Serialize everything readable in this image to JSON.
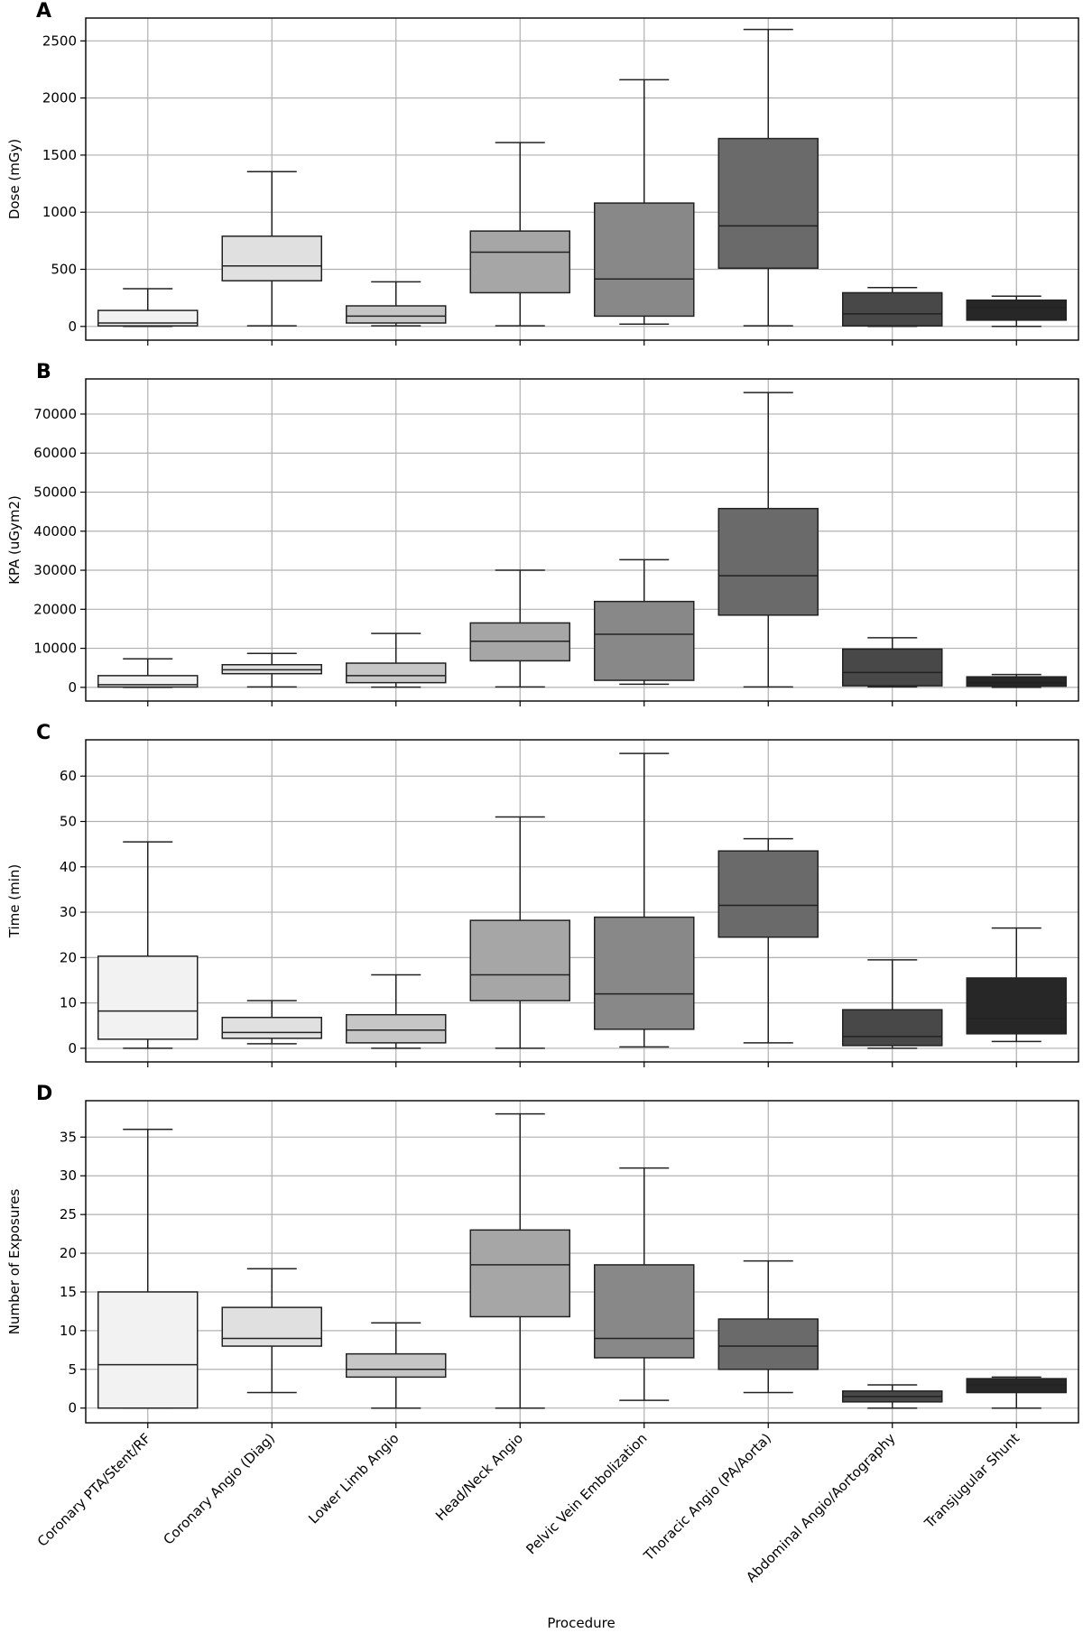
{
  "chart_data": {
    "type": "box",
    "categories": [
      "Coronary PTA/Stent/RF",
      "Coronary Angio (Diag)",
      "Lower Limb Angio",
      "Head/Neck Angio",
      "Pelvic Vein Embolization",
      "Thoracic Angio (PA/Aorta)",
      "Abdominal Angio/Aortography",
      "Transjugular Shunt"
    ],
    "box_colors": [
      "#f2f2f2",
      "#e0e0e0",
      "#c6c6c6",
      "#a6a6a6",
      "#888888",
      "#6a6a6a",
      "#484848",
      "#272727"
    ],
    "xlabel": "Procedure",
    "grid": true,
    "panels": [
      {
        "label": "A",
        "ylabel": "Dose (mGy)",
        "ylim": [
          -120,
          2700
        ],
        "yticks": [
          0,
          500,
          1000,
          1500,
          2000,
          2500
        ],
        "boxes": [
          {
            "whislo": 0,
            "q1": 5,
            "med": 30,
            "q3": 140,
            "whishi": 330
          },
          {
            "whislo": 5,
            "q1": 400,
            "med": 530,
            "q3": 790,
            "whishi": 1355
          },
          {
            "whislo": 5,
            "q1": 30,
            "med": 90,
            "q3": 180,
            "whishi": 390
          },
          {
            "whislo": 5,
            "q1": 295,
            "med": 650,
            "q3": 835,
            "whishi": 1610
          },
          {
            "whislo": 20,
            "q1": 90,
            "med": 415,
            "q3": 1080,
            "whishi": 2160
          },
          {
            "whislo": 5,
            "q1": 510,
            "med": 880,
            "q3": 1645,
            "whishi": 2600
          },
          {
            "whislo": 0,
            "q1": 5,
            "med": 110,
            "q3": 295,
            "whishi": 340
          },
          {
            "whislo": 0,
            "q1": 55,
            "med": 165,
            "q3": 230,
            "whishi": 265
          }
        ]
      },
      {
        "label": "B",
        "ylabel": "KPA (uGym2)",
        "ylim": [
          -3500,
          79000
        ],
        "yticks": [
          0,
          10000,
          20000,
          30000,
          40000,
          50000,
          60000,
          70000
        ],
        "boxes": [
          {
            "whislo": 0,
            "q1": 100,
            "med": 700,
            "q3": 3000,
            "whishi": 7300
          },
          {
            "whislo": 100,
            "q1": 3500,
            "med": 4500,
            "q3": 5800,
            "whishi": 8700
          },
          {
            "whislo": 50,
            "q1": 1200,
            "med": 3000,
            "q3": 6200,
            "whishi": 13800
          },
          {
            "whislo": 100,
            "q1": 6800,
            "med": 11800,
            "q3": 16500,
            "whishi": 30000
          },
          {
            "whislo": 800,
            "q1": 1800,
            "med": 13600,
            "q3": 22000,
            "whishi": 32700
          },
          {
            "whislo": 100,
            "q1": 18500,
            "med": 28600,
            "q3": 45800,
            "whishi": 75500
          },
          {
            "whislo": 100,
            "q1": 400,
            "med": 3800,
            "q3": 9800,
            "whishi": 12700
          },
          {
            "whislo": 0,
            "q1": 300,
            "med": 1200,
            "q3": 2700,
            "whishi": 3300
          }
        ]
      },
      {
        "label": "C",
        "ylabel": "Time (min)",
        "ylim": [
          -3,
          68
        ],
        "yticks": [
          0,
          10,
          20,
          30,
          40,
          50,
          60
        ],
        "boxes": [
          {
            "whislo": 0,
            "q1": 2,
            "med": 8.2,
            "q3": 20.3,
            "whishi": 45.5
          },
          {
            "whislo": 1,
            "q1": 2.2,
            "med": 3.5,
            "q3": 6.8,
            "whishi": 10.5
          },
          {
            "whislo": 0,
            "q1": 1.2,
            "med": 4,
            "q3": 7.4,
            "whishi": 16.2
          },
          {
            "whislo": 0,
            "q1": 10.5,
            "med": 16.2,
            "q3": 28.2,
            "whishi": 51
          },
          {
            "whislo": 0.3,
            "q1": 4.2,
            "med": 12,
            "q3": 28.9,
            "whishi": 65
          },
          {
            "whislo": 1.2,
            "q1": 24.5,
            "med": 31.5,
            "q3": 43.5,
            "whishi": 46.2
          },
          {
            "whislo": 0,
            "q1": 0.6,
            "med": 2.6,
            "q3": 8.5,
            "whishi": 19.5
          },
          {
            "whislo": 1.5,
            "q1": 3.2,
            "med": 6.5,
            "q3": 15.5,
            "whishi": 26.5
          }
        ]
      },
      {
        "label": "D",
        "ylabel": "Number of Exposures",
        "ylim": [
          -1.9,
          39.7
        ],
        "yticks": [
          0,
          5,
          10,
          15,
          20,
          25,
          30,
          35
        ],
        "boxes": [
          {
            "whislo": 0,
            "q1": 0,
            "med": 5.6,
            "q3": 15,
            "whishi": 36
          },
          {
            "whislo": 2,
            "q1": 8,
            "med": 9,
            "q3": 13,
            "whishi": 18
          },
          {
            "whislo": 0,
            "q1": 4,
            "med": 5,
            "q3": 7,
            "whishi": 11
          },
          {
            "whislo": 0,
            "q1": 11.8,
            "med": 18.5,
            "q3": 23,
            "whishi": 38
          },
          {
            "whislo": 1,
            "q1": 6.5,
            "med": 9,
            "q3": 18.5,
            "whishi": 31
          },
          {
            "whislo": 2,
            "q1": 5,
            "med": 8,
            "q3": 11.5,
            "whishi": 19
          },
          {
            "whislo": 0,
            "q1": 0.8,
            "med": 1.5,
            "q3": 2.2,
            "whishi": 3
          },
          {
            "whislo": 0,
            "q1": 2,
            "med": 3,
            "q3": 3.8,
            "whishi": 4
          }
        ]
      }
    ]
  }
}
